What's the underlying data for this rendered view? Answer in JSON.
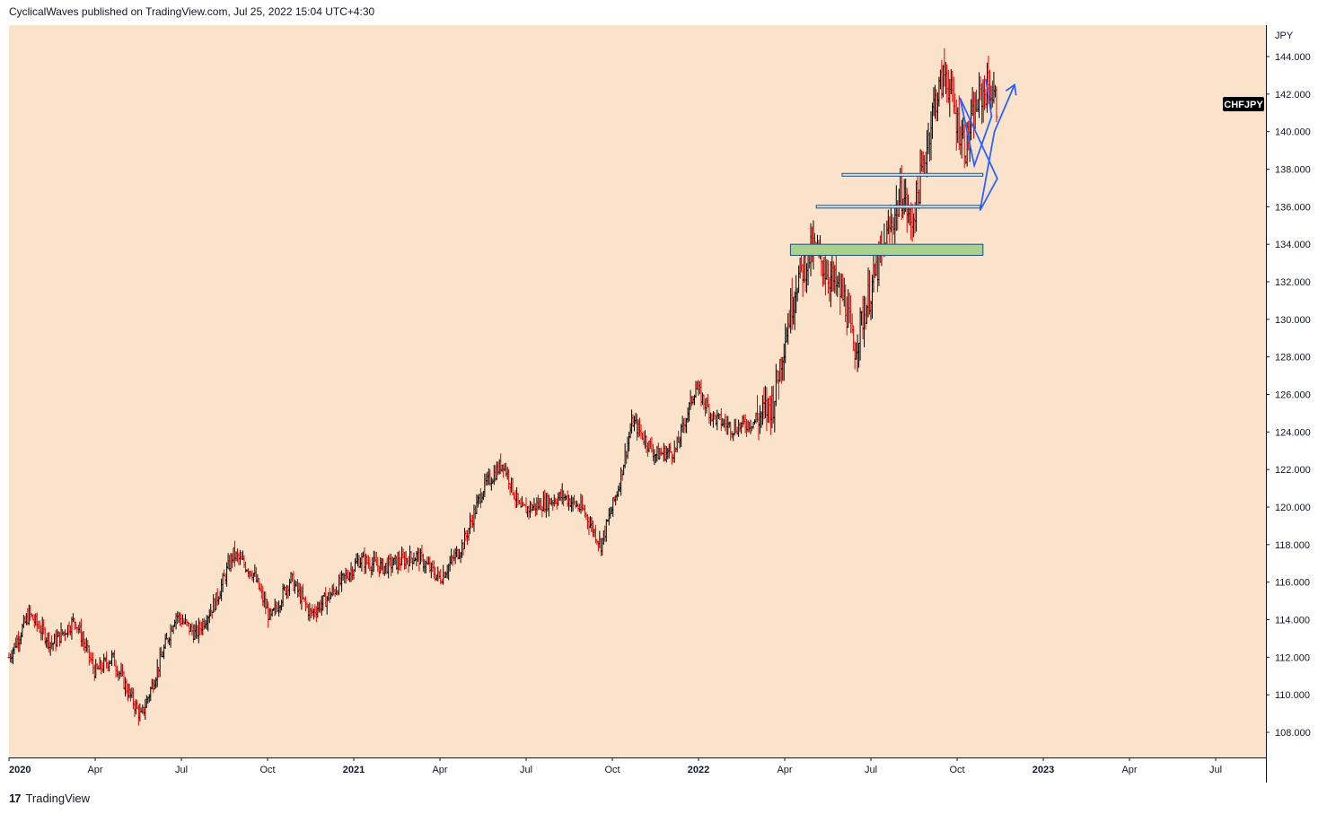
{
  "header": {
    "text": "CyclicalWaves published on TradingView.com, Jul 25, 2022 15:04 UTC+4:30"
  },
  "footer": {
    "logo": "17",
    "brand": "TradingView"
  },
  "colors": {
    "background": "#fbe3cb",
    "up": "#000000",
    "down": "#e00000",
    "arrow": "#2962ff",
    "box_fill": "#a9d18e",
    "box_border": "#1f4e79",
    "symbol_label_bg": "#000000"
  },
  "symbol_label": "CHFJPY",
  "chart_data": {
    "type": "candlestick",
    "currency_label": "JPY",
    "y_ticks": [
      "144.000",
      "142.000",
      "140.000",
      "138.000",
      "136.000",
      "134.000",
      "132.000",
      "130.000",
      "128.000",
      "126.000",
      "124.000",
      "122.000",
      "120.000",
      "118.000",
      "116.000",
      "114.000",
      "112.000",
      "110.000",
      "108.000"
    ],
    "ylim": [
      107,
      145.5
    ],
    "x_ticks": [
      {
        "label": "2020",
        "bold": true
      },
      {
        "label": "Apr",
        "bold": false
      },
      {
        "label": "Jul",
        "bold": false
      },
      {
        "label": "Oct",
        "bold": false
      },
      {
        "label": "2021",
        "bold": true
      },
      {
        "label": "Apr",
        "bold": false
      },
      {
        "label": "Jul",
        "bold": false
      },
      {
        "label": "Oct",
        "bold": false
      },
      {
        "label": "2022",
        "bold": true
      },
      {
        "label": "Apr",
        "bold": false
      },
      {
        "label": "Jul",
        "bold": false
      },
      {
        "label": "Oct",
        "bold": false
      },
      {
        "label": "2023",
        "bold": true
      },
      {
        "label": "Apr",
        "bold": false
      },
      {
        "label": "Jul",
        "bold": false
      }
    ],
    "x_range_months": [
      0,
      43.6
    ],
    "price_path": [
      [
        0,
        112.0
      ],
      [
        0.7,
        114.3
      ],
      [
        1.5,
        112.7
      ],
      [
        2.3,
        114.0
      ],
      [
        3.0,
        111.2
      ],
      [
        3.6,
        112.0
      ],
      [
        4.2,
        110.0
      ],
      [
        4.6,
        108.8
      ],
      [
        5.2,
        111.5
      ],
      [
        5.8,
        114.3
      ],
      [
        6.5,
        113.2
      ],
      [
        7.2,
        115.0
      ],
      [
        7.8,
        117.5
      ],
      [
        8.5,
        116.5
      ],
      [
        9.1,
        114.0
      ],
      [
        9.8,
        116.2
      ],
      [
        10.5,
        114.3
      ],
      [
        11.3,
        115.5
      ],
      [
        12.2,
        117.2
      ],
      [
        13.0,
        116.8
      ],
      [
        14.2,
        117.4
      ],
      [
        15.0,
        116.2
      ],
      [
        15.8,
        118.0
      ],
      [
        16.5,
        121.0
      ],
      [
        17.2,
        122.4
      ],
      [
        17.8,
        119.8
      ],
      [
        18.6,
        120.2
      ],
      [
        19.3,
        120.6
      ],
      [
        20.0,
        119.8
      ],
      [
        20.6,
        118.0
      ],
      [
        21.2,
        121.0
      ],
      [
        21.7,
        124.6
      ],
      [
        22.5,
        122.8
      ],
      [
        23.2,
        123.0
      ],
      [
        23.9,
        126.4
      ],
      [
        24.5,
        124.8
      ],
      [
        25.2,
        124.2
      ],
      [
        26.0,
        124.6
      ],
      [
        26.6,
        125.6
      ],
      [
        27.0,
        129.0
      ],
      [
        27.4,
        132.0
      ],
      [
        28.0,
        133.8
      ],
      [
        28.6,
        132.2
      ],
      [
        29.1,
        131.0
      ],
      [
        29.4,
        128.3
      ],
      [
        29.7,
        130.0
      ],
      [
        30.2,
        132.6
      ],
      [
        30.8,
        135.5
      ],
      [
        31.1,
        136.8
      ],
      [
        31.4,
        135.0
      ],
      [
        31.8,
        138.0
      ],
      [
        32.2,
        141.5
      ],
      [
        32.6,
        143.2
      ],
      [
        33.0,
        140.5
      ],
      [
        33.3,
        139.2
      ],
      [
        33.7,
        141.5
      ],
      [
        34.1,
        142.5
      ],
      [
        34.4,
        141.3
      ]
    ],
    "annotations": {
      "zones": [
        {
          "type": "resistance-line",
          "from_month": 28.1,
          "to_month": 33.8,
          "price": 136.0
        },
        {
          "type": "resistance-line",
          "from_month": 29.0,
          "to_month": 33.9,
          "price": 137.7
        },
        {
          "type": "support-box",
          "from_month": 27.2,
          "to_month": 33.9,
          "top": 134.0,
          "bottom": 133.6
        }
      ],
      "projection": [
        [
          34.0,
          142.8
        ],
        [
          34.2,
          140.8
        ],
        [
          33.6,
          138.2
        ],
        [
          33.1,
          141.8
        ],
        [
          34.4,
          137.5
        ],
        [
          33.8,
          135.8
        ],
        [
          34.3,
          140.0
        ],
        [
          35.0,
          142.5
        ]
      ]
    }
  }
}
